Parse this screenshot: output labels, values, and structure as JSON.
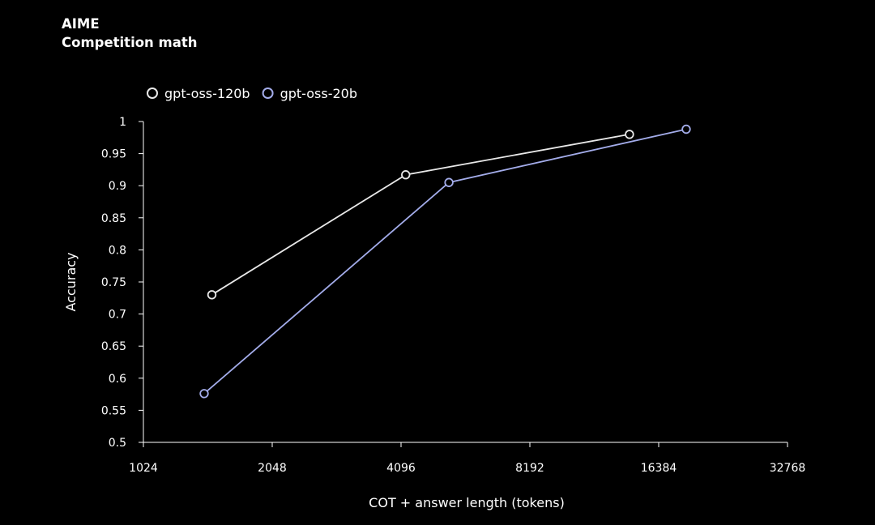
{
  "chart_data": {
    "type": "line",
    "title": "AIME",
    "subtitle": "Competition math",
    "xlabel": "COT + answer length (tokens)",
    "ylabel": "Accuracy",
    "xscale": "log2",
    "xlim": [
      1024,
      32768
    ],
    "ylim": [
      0.5,
      1.0
    ],
    "xticks": [
      "1024",
      "2048",
      "4096",
      "8192",
      "16384",
      "32768"
    ],
    "xtick_values": [
      1024,
      2048,
      4096,
      8192,
      16384,
      32768
    ],
    "yticks": [
      "0.5",
      "0.55",
      "0.6",
      "0.65",
      "0.7",
      "0.75",
      "0.8",
      "0.85",
      "0.9",
      "0.95",
      "1"
    ],
    "ytick_values": [
      0.5,
      0.55,
      0.6,
      0.65,
      0.7,
      0.75,
      0.8,
      0.85,
      0.9,
      0.95,
      1.0
    ],
    "grid": false,
    "legend_position": "top-left",
    "series": [
      {
        "name": "gpt-oss-120b",
        "color": "#e8e8e8",
        "points": [
          {
            "x": 1480,
            "y": 0.73
          },
          {
            "x": 4200,
            "y": 0.917
          },
          {
            "x": 14000,
            "y": 0.98
          }
        ]
      },
      {
        "name": "gpt-oss-20b",
        "color": "#a3acea",
        "points": [
          {
            "x": 1420,
            "y": 0.576
          },
          {
            "x": 5300,
            "y": 0.905
          },
          {
            "x": 19000,
            "y": 0.988
          }
        ]
      }
    ]
  }
}
